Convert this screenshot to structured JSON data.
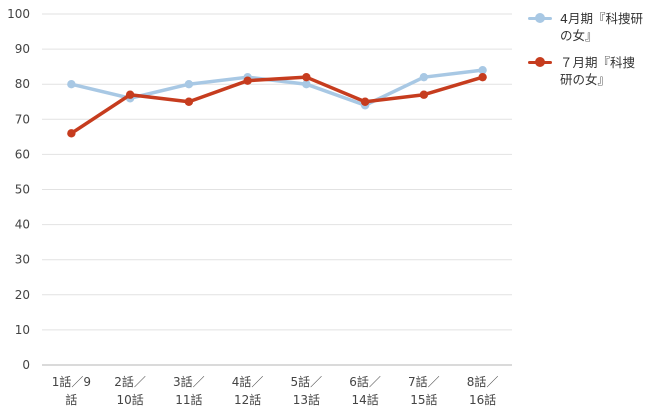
{
  "chart_data": {
    "type": "line",
    "title": "",
    "xlabel": "",
    "ylabel": "",
    "categories": [
      "1話／9話",
      "2話／10話",
      "3話／11話",
      "4話／12話",
      "5話／13話",
      "6話／14話",
      "7話／15話",
      "8話／16話"
    ],
    "category_lines": [
      [
        "1話／9",
        "話"
      ],
      [
        "2話／",
        "10話"
      ],
      [
        "3話／",
        "11話"
      ],
      [
        "4話／",
        "12話"
      ],
      [
        "5話／",
        "13話"
      ],
      [
        "6話／",
        "14話"
      ],
      [
        "7話／",
        "15話"
      ],
      [
        "8話／",
        "16話"
      ]
    ],
    "ylim": [
      0,
      100
    ],
    "yticks": [
      0,
      10,
      20,
      30,
      40,
      50,
      60,
      70,
      80,
      90,
      100
    ],
    "grid": true,
    "legend_position": "right",
    "series": [
      {
        "name": "4月期『科捜研の女』",
        "legend_lines": [
          "4月期『科捜研",
          "の女』"
        ],
        "color": "#a8c8e4",
        "values": [
          80,
          76,
          80,
          82,
          80,
          74,
          82,
          84
        ]
      },
      {
        "name": "７月期『科捜研の女』",
        "legend_lines": [
          "７月期『科捜",
          "研の女』"
        ],
        "color": "#c63c1e",
        "values": [
          66,
          77,
          75,
          81,
          82,
          75,
          77,
          82
        ]
      }
    ]
  }
}
